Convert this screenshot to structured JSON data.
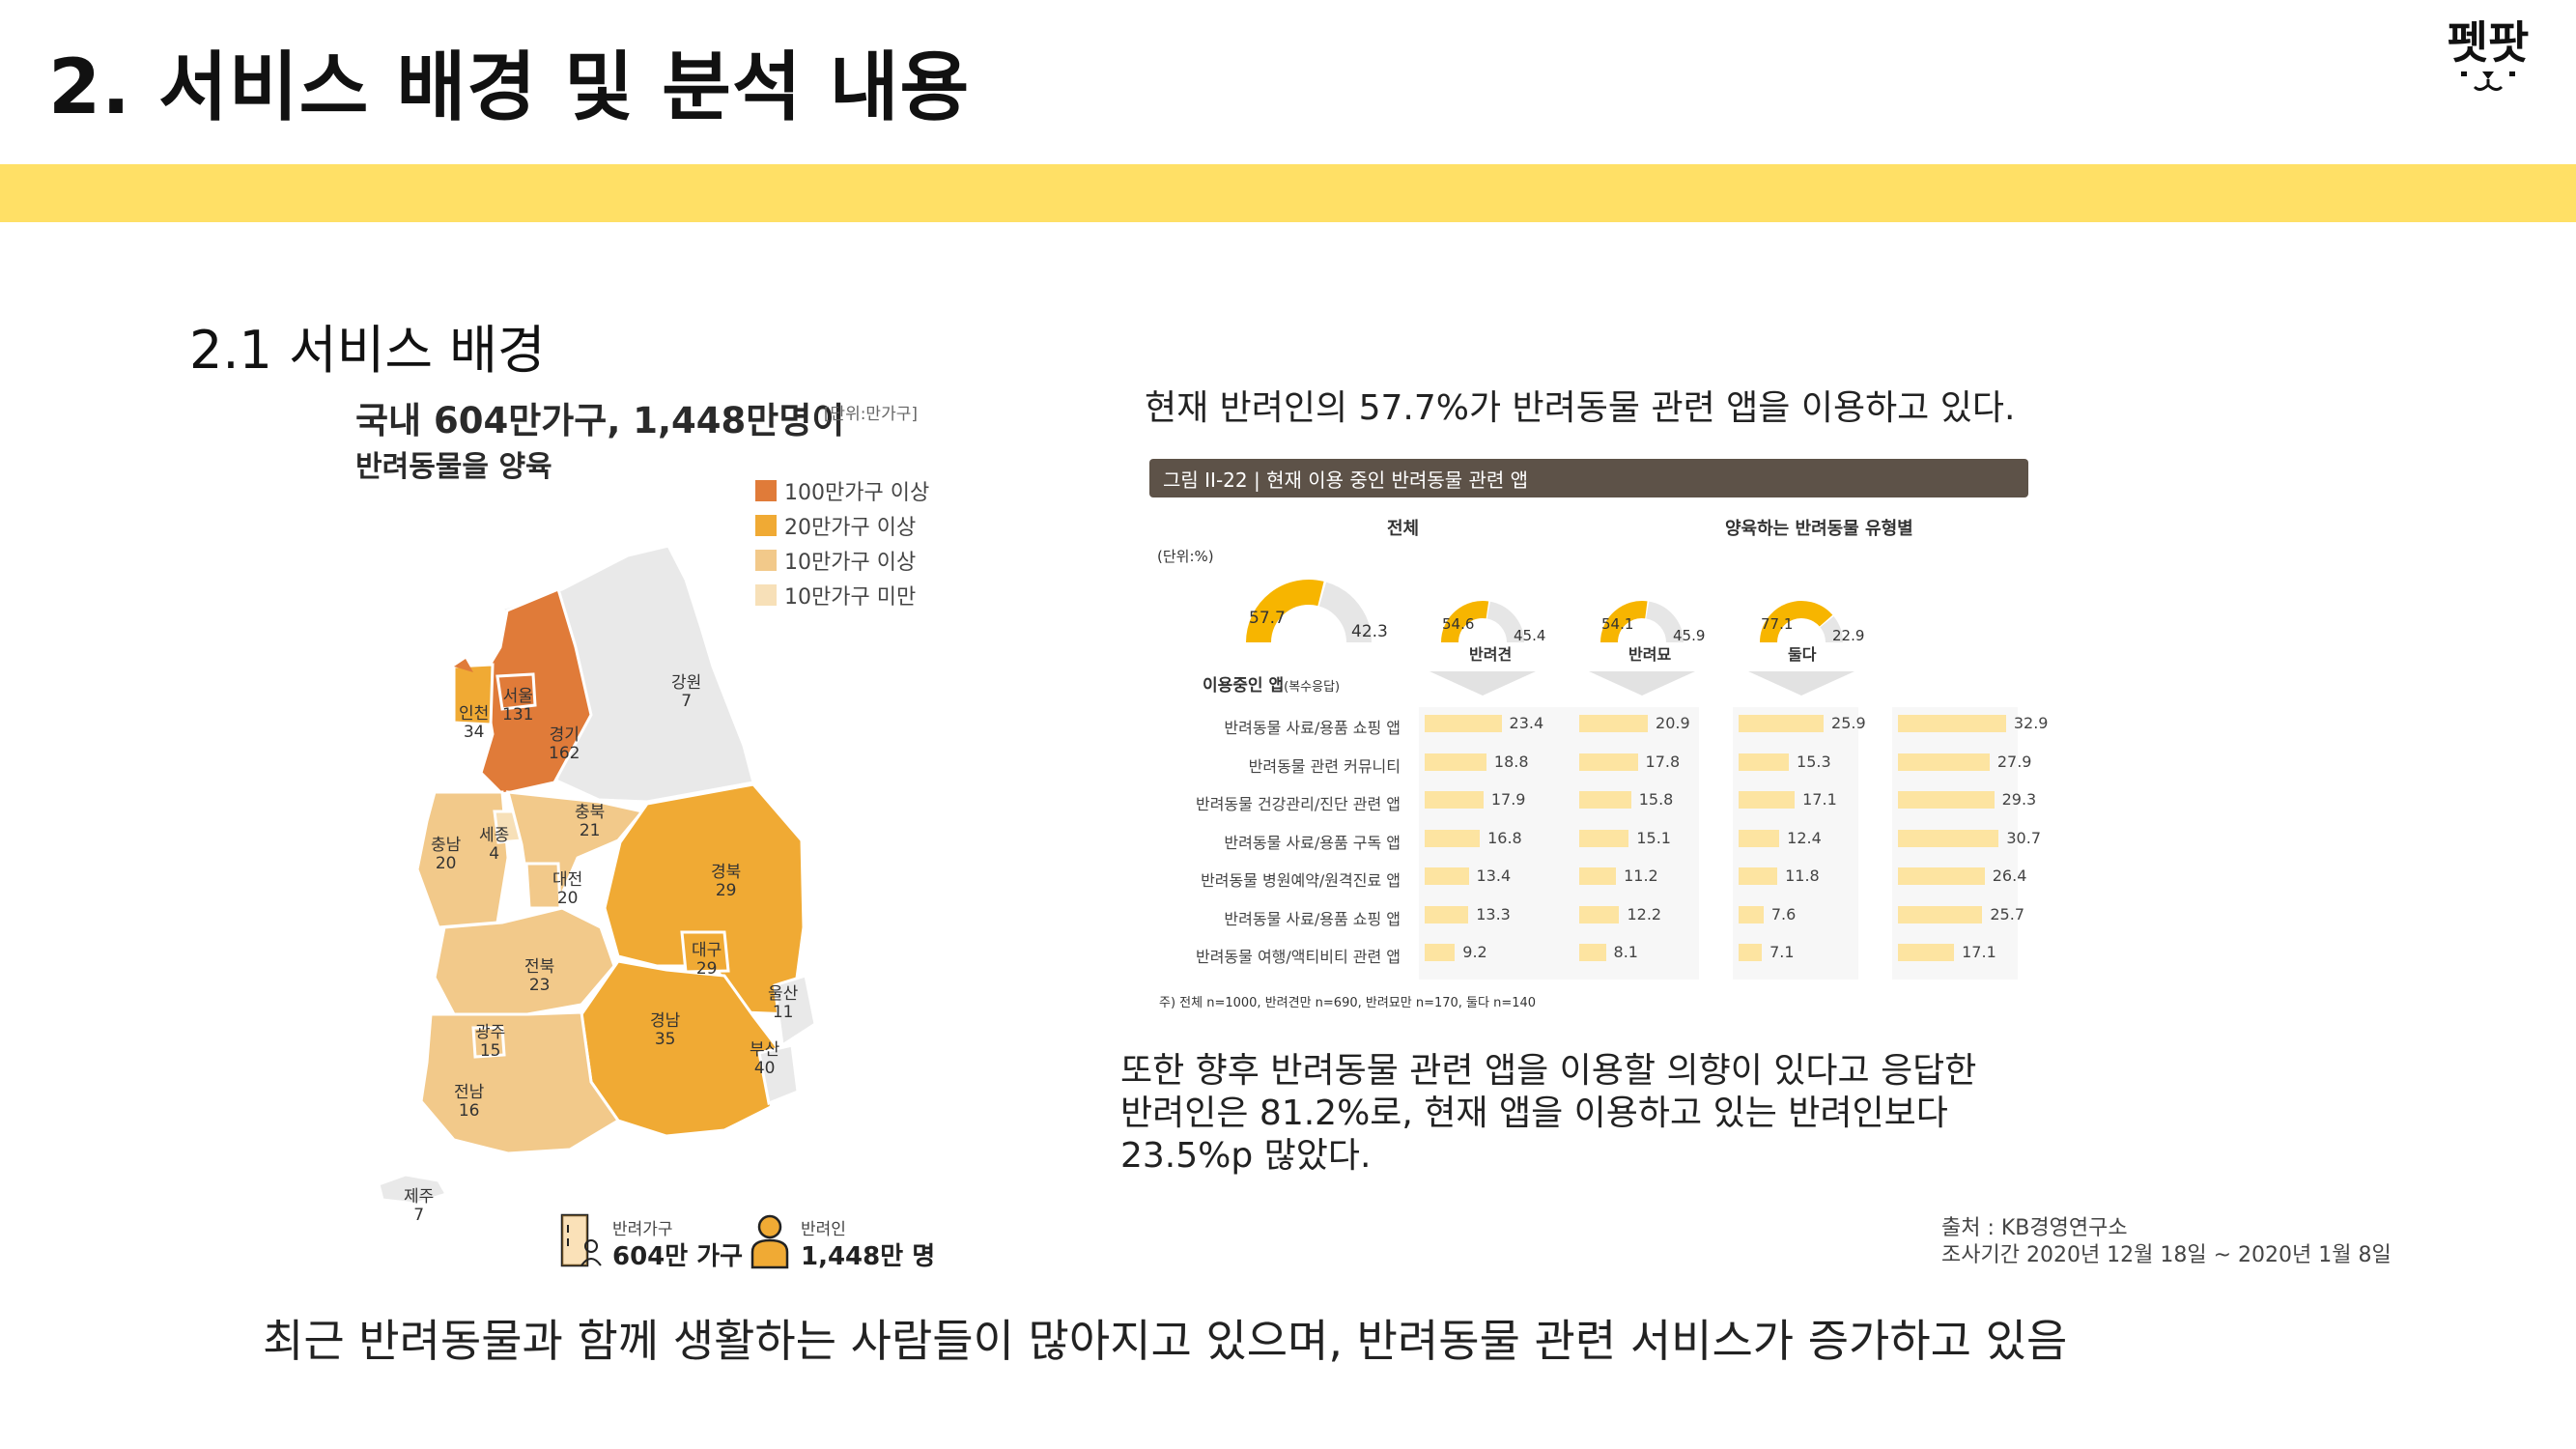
{
  "slide": {
    "title": "2. 서비스 배경 및 분석 내용",
    "logo_text": "펫팟",
    "section_title": "2.1 서비스 배경",
    "conclusion": "최근 반려동물과 함께 생활하는 사람들이 많아지고 있으며,  반려동물 관련 서비스가 증가하고 있음",
    "colors": {
      "band": "#FFE066",
      "accent_dark": "#E07B39",
      "accent_mid": "#F0AA34",
      "accent_light": "#F2C98A",
      "accent_pale": "#F7E0B8"
    }
  },
  "map": {
    "headline_line1_a": "국내 ",
    "headline_line1_b": "604만가구, 1,448만명",
    "headline_line1_c": "이",
    "headline_line2": "반려동물을 양육",
    "unit": "[단위:만가구]",
    "legend": [
      {
        "label": "100만가구 이상",
        "color": "#E07B39"
      },
      {
        "label": "20만가구 이상",
        "color": "#F0AA34"
      },
      {
        "label": "10만가구 이상",
        "color": "#F2C98A"
      },
      {
        "label": "10만가구 미만",
        "color": "#F7E0B8"
      }
    ],
    "regions": [
      {
        "name": "서울",
        "value": "131"
      },
      {
        "name": "인천",
        "value": "34"
      },
      {
        "name": "경기",
        "value": "162"
      },
      {
        "name": "강원",
        "value": "7"
      },
      {
        "name": "충남",
        "value": "20"
      },
      {
        "name": "세종",
        "value": "4"
      },
      {
        "name": "충북",
        "value": "21"
      },
      {
        "name": "대전",
        "value": "20"
      },
      {
        "name": "경북",
        "value": "29"
      },
      {
        "name": "대구",
        "value": "29"
      },
      {
        "name": "전북",
        "value": "23"
      },
      {
        "name": "울산",
        "value": "11"
      },
      {
        "name": "경남",
        "value": "35"
      },
      {
        "name": "부산",
        "value": "40"
      },
      {
        "name": "광주",
        "value": "15"
      },
      {
        "name": "전남",
        "value": "16"
      },
      {
        "name": "제주",
        "value": "7"
      }
    ],
    "stats": [
      {
        "label": "반려가구",
        "value": "604만 가구",
        "icon": "household-icon"
      },
      {
        "label": "반려인",
        "value": "1,448만 명",
        "icon": "person-icon"
      }
    ]
  },
  "intro_text": "현재 반려인의 57.7%가 반려동물 관련 앱을 이용하고 있다.",
  "figure": {
    "caption": "그림 II-22 | 현재 이용 중인 반려동물 관련 앱",
    "group_total": "전체",
    "group_pets": "양육하는 반려동물 유형별",
    "unit": "(단위:%)",
    "usage_label": "이용중인 앱",
    "usage_sub": "(복수응답)",
    "note": "주) 전체 n=1000, 반려견만 n=690, 반려묘만 n=170, 둘다 n=140",
    "donuts": [
      {
        "name": "",
        "yes": "57.7",
        "no": "42.3"
      },
      {
        "name": "반려견",
        "yes": "54.6",
        "no": "45.4"
      },
      {
        "name": "반려묘",
        "yes": "54.1",
        "no": "45.9"
      },
      {
        "name": "둘다",
        "yes": "77.1",
        "no": "22.9"
      }
    ],
    "rows": [
      "반려동물 사료/용품 쇼핑 앱",
      "반려동물 관련 커뮤니티",
      "반려동물 건강관리/진단 관련 앱",
      "반려동물 사료/용품 구독 앱",
      "반려동물 병원예약/원격진료 앱",
      "반려동물 사료/용품 쇼핑 앱",
      "반려동물 여행/액티비티 관련 앱"
    ],
    "columns": [
      {
        "name": "전체",
        "values": [
          "23.4",
          "18.8",
          "17.9",
          "16.8",
          "13.4",
          "13.3",
          "9.2"
        ]
      },
      {
        "name": "반려견",
        "values": [
          "20.9",
          "17.8",
          "15.8",
          "15.1",
          "11.2",
          "12.2",
          "8.1"
        ]
      },
      {
        "name": "반려묘",
        "values": [
          "25.9",
          "15.3",
          "17.1",
          "12.4",
          "11.8",
          "7.6",
          "7.1"
        ]
      },
      {
        "name": "둘다",
        "values": [
          "32.9",
          "27.9",
          "29.3",
          "30.7",
          "26.4",
          "25.7",
          "17.1"
        ]
      }
    ]
  },
  "more_text": [
    "또한 향후 반려동물 관련 앱을 이용할 의향이 있다고 응답한",
    "반려인은 81.2%로, 현재 앱을 이용하고 있는 반려인보다",
    "23.5%p 많았다."
  ],
  "source": [
    "출처 : KB경영연구소",
    "조사기간 2020년 12월 18일 ~ 2020년 1월 8일"
  ]
}
